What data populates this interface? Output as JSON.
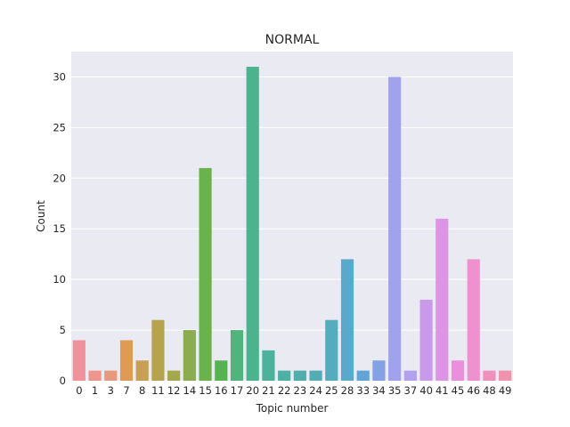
{
  "chart_data": {
    "type": "bar",
    "title": "NORMAL",
    "xlabel": "Topic number",
    "ylabel": "Count",
    "ylim": [
      0,
      32.5
    ],
    "yticks": [
      0,
      5,
      10,
      15,
      20,
      25,
      30
    ],
    "grid": true,
    "categories": [
      "0",
      "1",
      "3",
      "7",
      "8",
      "11",
      "12",
      "14",
      "15",
      "16",
      "17",
      "20",
      "21",
      "22",
      "23",
      "24",
      "25",
      "28",
      "33",
      "34",
      "35",
      "37",
      "40",
      "41",
      "45",
      "46",
      "48",
      "49"
    ],
    "values": [
      4,
      1,
      1,
      4,
      2,
      6,
      1,
      5,
      21,
      2,
      5,
      31,
      3,
      1,
      1,
      1,
      6,
      12,
      1,
      2,
      30,
      1,
      8,
      16,
      2,
      12,
      1,
      1
    ],
    "colors": [
      "#f0929b",
      "#ed968e",
      "#e8987e",
      "#df9a56",
      "#c7a055",
      "#b5a44d",
      "#a3a84d",
      "#8bad4d",
      "#6ab24c",
      "#55b44f",
      "#50b47d",
      "#4cb38e",
      "#4db29b",
      "#4fb0a5",
      "#50afac",
      "#52aeb4",
      "#55acbe",
      "#58a9ca",
      "#62a4d6",
      "#84a2e3",
      "#a0a3ec",
      "#b2a1ec",
      "#c89bea",
      "#dc95e4",
      "#ea8fdc",
      "#ee91ce",
      "#ef91bc",
      "#f093ad"
    ]
  }
}
